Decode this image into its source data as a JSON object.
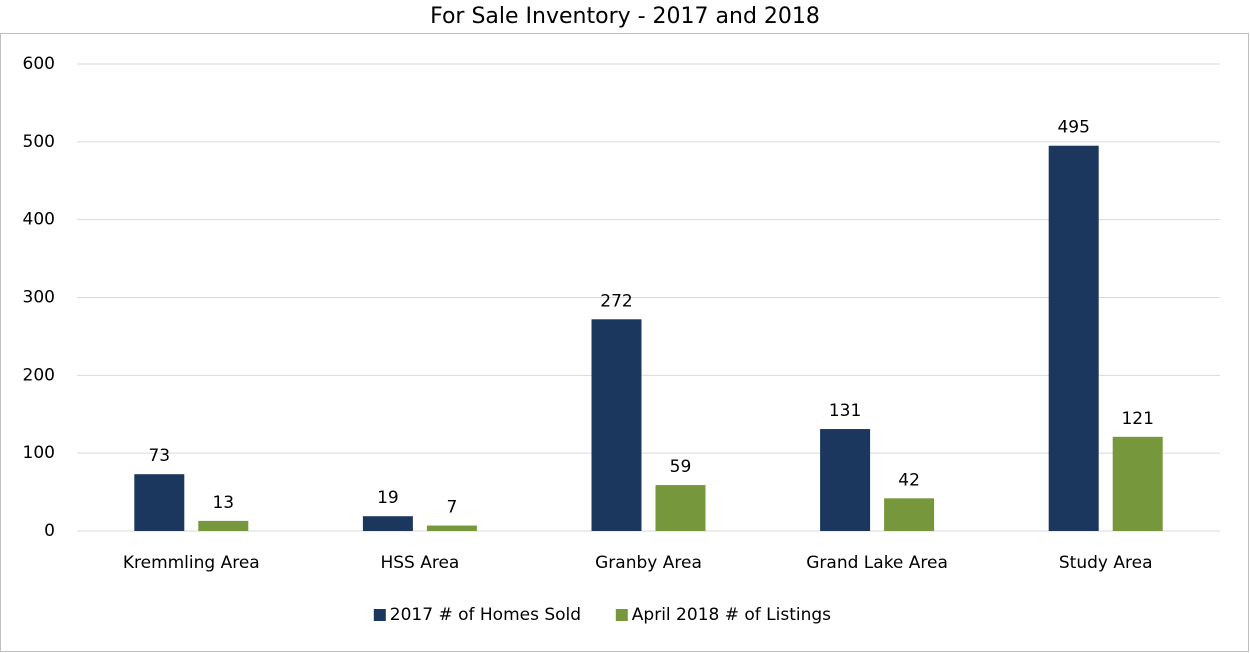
{
  "chart_data": {
    "type": "bar",
    "title": "For Sale Inventory - 2017 and 2018",
    "categories": [
      "Kremmling Area",
      "HSS Area",
      "Granby Area",
      "Grand Lake Area",
      "Study Area"
    ],
    "series": [
      {
        "name": "2017 # of Homes Sold",
        "color": "#1c375e",
        "values": [
          73,
          19,
          272,
          131,
          495
        ]
      },
      {
        "name": "April 2018 # of Listings",
        "color": "#77973d",
        "values": [
          13,
          7,
          59,
          42,
          121
        ]
      }
    ],
    "ylim": [
      0,
      600
    ],
    "yticks": [
      0,
      100,
      200,
      300,
      400,
      500,
      600
    ],
    "grid": true,
    "legend": "bottom"
  }
}
